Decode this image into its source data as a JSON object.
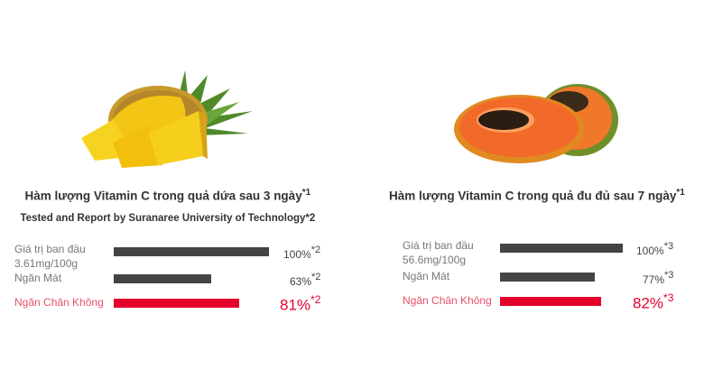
{
  "colors": {
    "bar_default": "#444444",
    "bar_highlight": "#e4002b",
    "label_highlight": "#e8506a"
  },
  "chart_data": [
    {
      "type": "bar",
      "orientation": "horizontal",
      "title": "Hàm lượng Vitamin C trong quả dứa sau 3 ngày",
      "title_note": "*1",
      "subtitle": "Tested and Report by Suranaree University of Technology*2",
      "image": "pineapple",
      "categories": [
        "Giá trị ban đầu 3.61mg/100g",
        "Ngăn Mát",
        "Ngăn Chân Không"
      ],
      "category_lines": [
        [
          "Giá trị ban đầu",
          "3.61mg/100g"
        ],
        [
          "Ngăn Mát"
        ],
        [
          "Ngăn Chân Không"
        ]
      ],
      "values": [
        100,
        63,
        81
      ],
      "value_labels": [
        "100%",
        "63%",
        "81%"
      ],
      "notes": [
        "*2",
        "*2",
        "*2"
      ],
      "highlight_index": 2,
      "xlim": [
        0,
        100
      ]
    },
    {
      "type": "bar",
      "orientation": "horizontal",
      "title": "Hàm lượng Vitamin C trong quả đu đủ sau 7 ngày",
      "title_note": "*1",
      "image": "papaya",
      "categories": [
        "Giá trị ban đầu 56.6mg/100g",
        "Ngăn Mát",
        "Ngăn Chân Không"
      ],
      "category_lines": [
        [
          "Giá trị ban đầu",
          "56.6mg/100g"
        ],
        [
          "Ngăn Mát"
        ],
        [
          "Ngăn Chân Không"
        ]
      ],
      "values": [
        100,
        77,
        82
      ],
      "value_labels": [
        "100%",
        "77%",
        "82%"
      ],
      "notes": [
        "*3",
        "*3",
        "*3"
      ],
      "highlight_index": 2,
      "xlim": [
        0,
        100
      ]
    }
  ]
}
